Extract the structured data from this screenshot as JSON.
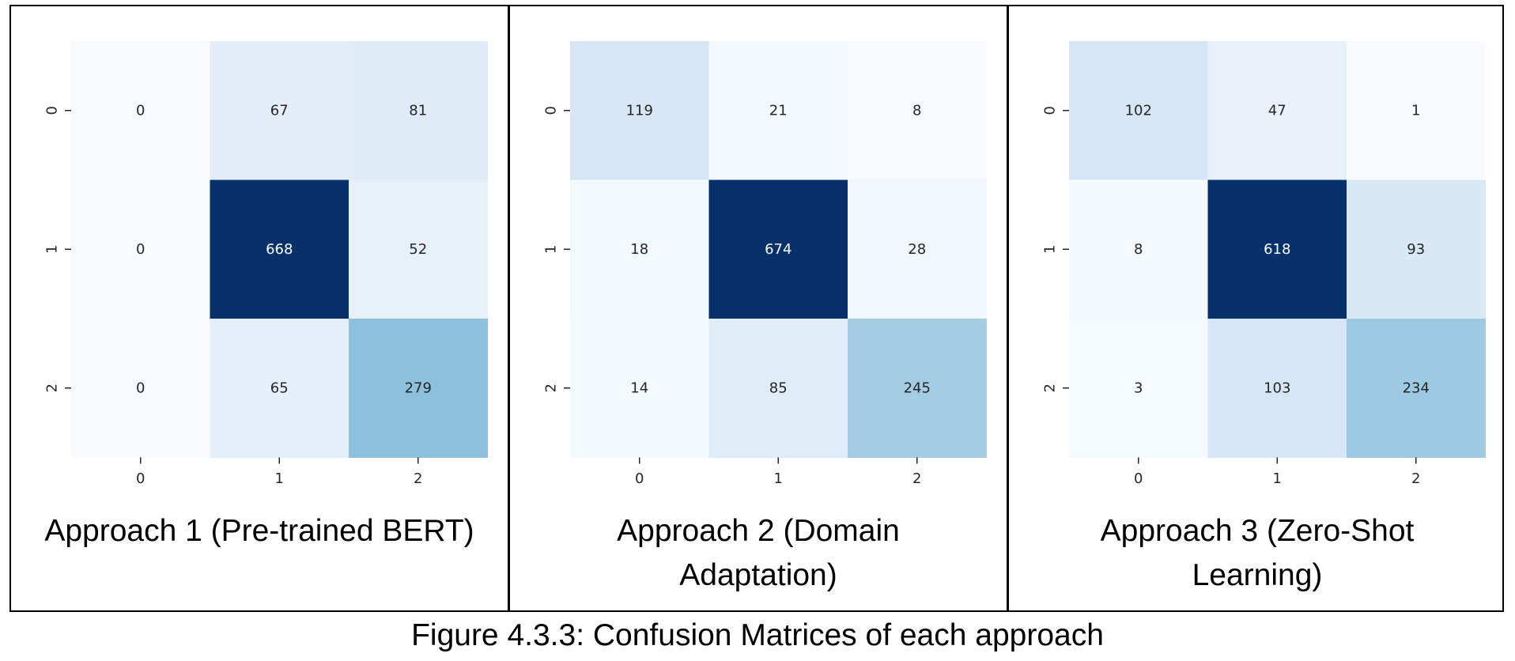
{
  "figure_caption": "Figure 4.3.3: Confusion Matrices of each approach",
  "colors": {
    "colormap": "Blues",
    "low": "#f7fbff",
    "high": "#08306b",
    "text_dark": "#262626",
    "text_light": "#ffffff"
  },
  "chart_data": [
    {
      "type": "heatmap",
      "caption": "Approach 1 (Pre-trained BERT)",
      "x_tick_labels": [
        "0",
        "1",
        "2"
      ],
      "y_tick_labels": [
        "0",
        "1",
        "2"
      ],
      "matrix": [
        [
          0,
          67,
          81
        ],
        [
          0,
          668,
          52
        ],
        [
          0,
          65,
          279
        ]
      ],
      "colorbar": false
    },
    {
      "type": "heatmap",
      "caption": "Approach 2 (Domain Adaptation)",
      "x_tick_labels": [
        "0",
        "1",
        "2"
      ],
      "y_tick_labels": [
        "0",
        "1",
        "2"
      ],
      "matrix": [
        [
          119,
          21,
          8
        ],
        [
          18,
          674,
          28
        ],
        [
          14,
          85,
          245
        ]
      ],
      "colorbar": false
    },
    {
      "type": "heatmap",
      "caption": "Approach 3 (Zero-Shot Learning)",
      "x_tick_labels": [
        "0",
        "1",
        "2"
      ],
      "y_tick_labels": [
        "0",
        "1",
        "2"
      ],
      "matrix": [
        [
          102,
          47,
          1
        ],
        [
          8,
          618,
          93
        ],
        [
          3,
          103,
          234
        ]
      ],
      "colorbar": false
    }
  ]
}
